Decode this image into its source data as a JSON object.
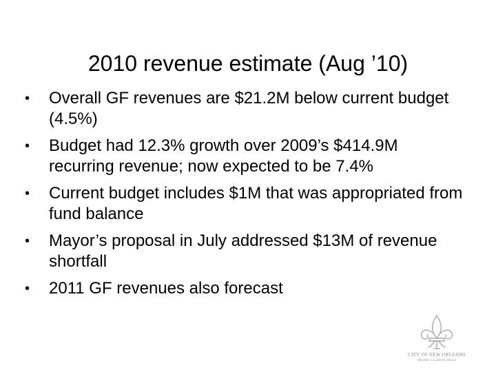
{
  "slide": {
    "title": "2010 revenue estimate (Aug ’10)",
    "bullet_glyph": "•",
    "bullets": [
      {
        "text": "Overall GF revenues are $21.2M below current budget (4.5%)"
      },
      {
        "text": "Budget had 12.3% growth over 2009’s $414.9M recurring revenue; now expected to be 7.4%"
      },
      {
        "text": "Current budget includes $1M that was appropriated from fund balance"
      },
      {
        "text": "Mayor’s proposal in July addressed $13M of revenue shortfall"
      },
      {
        "text": "2011 GF revenues also forecast"
      }
    ]
  },
  "logo": {
    "icon": "fleur-de-lis-icon",
    "line1": "CITY OF NEW ORLEANS",
    "line2": "Mitchell J. Landrieu, Mayor",
    "color": "#a8a8a8"
  }
}
